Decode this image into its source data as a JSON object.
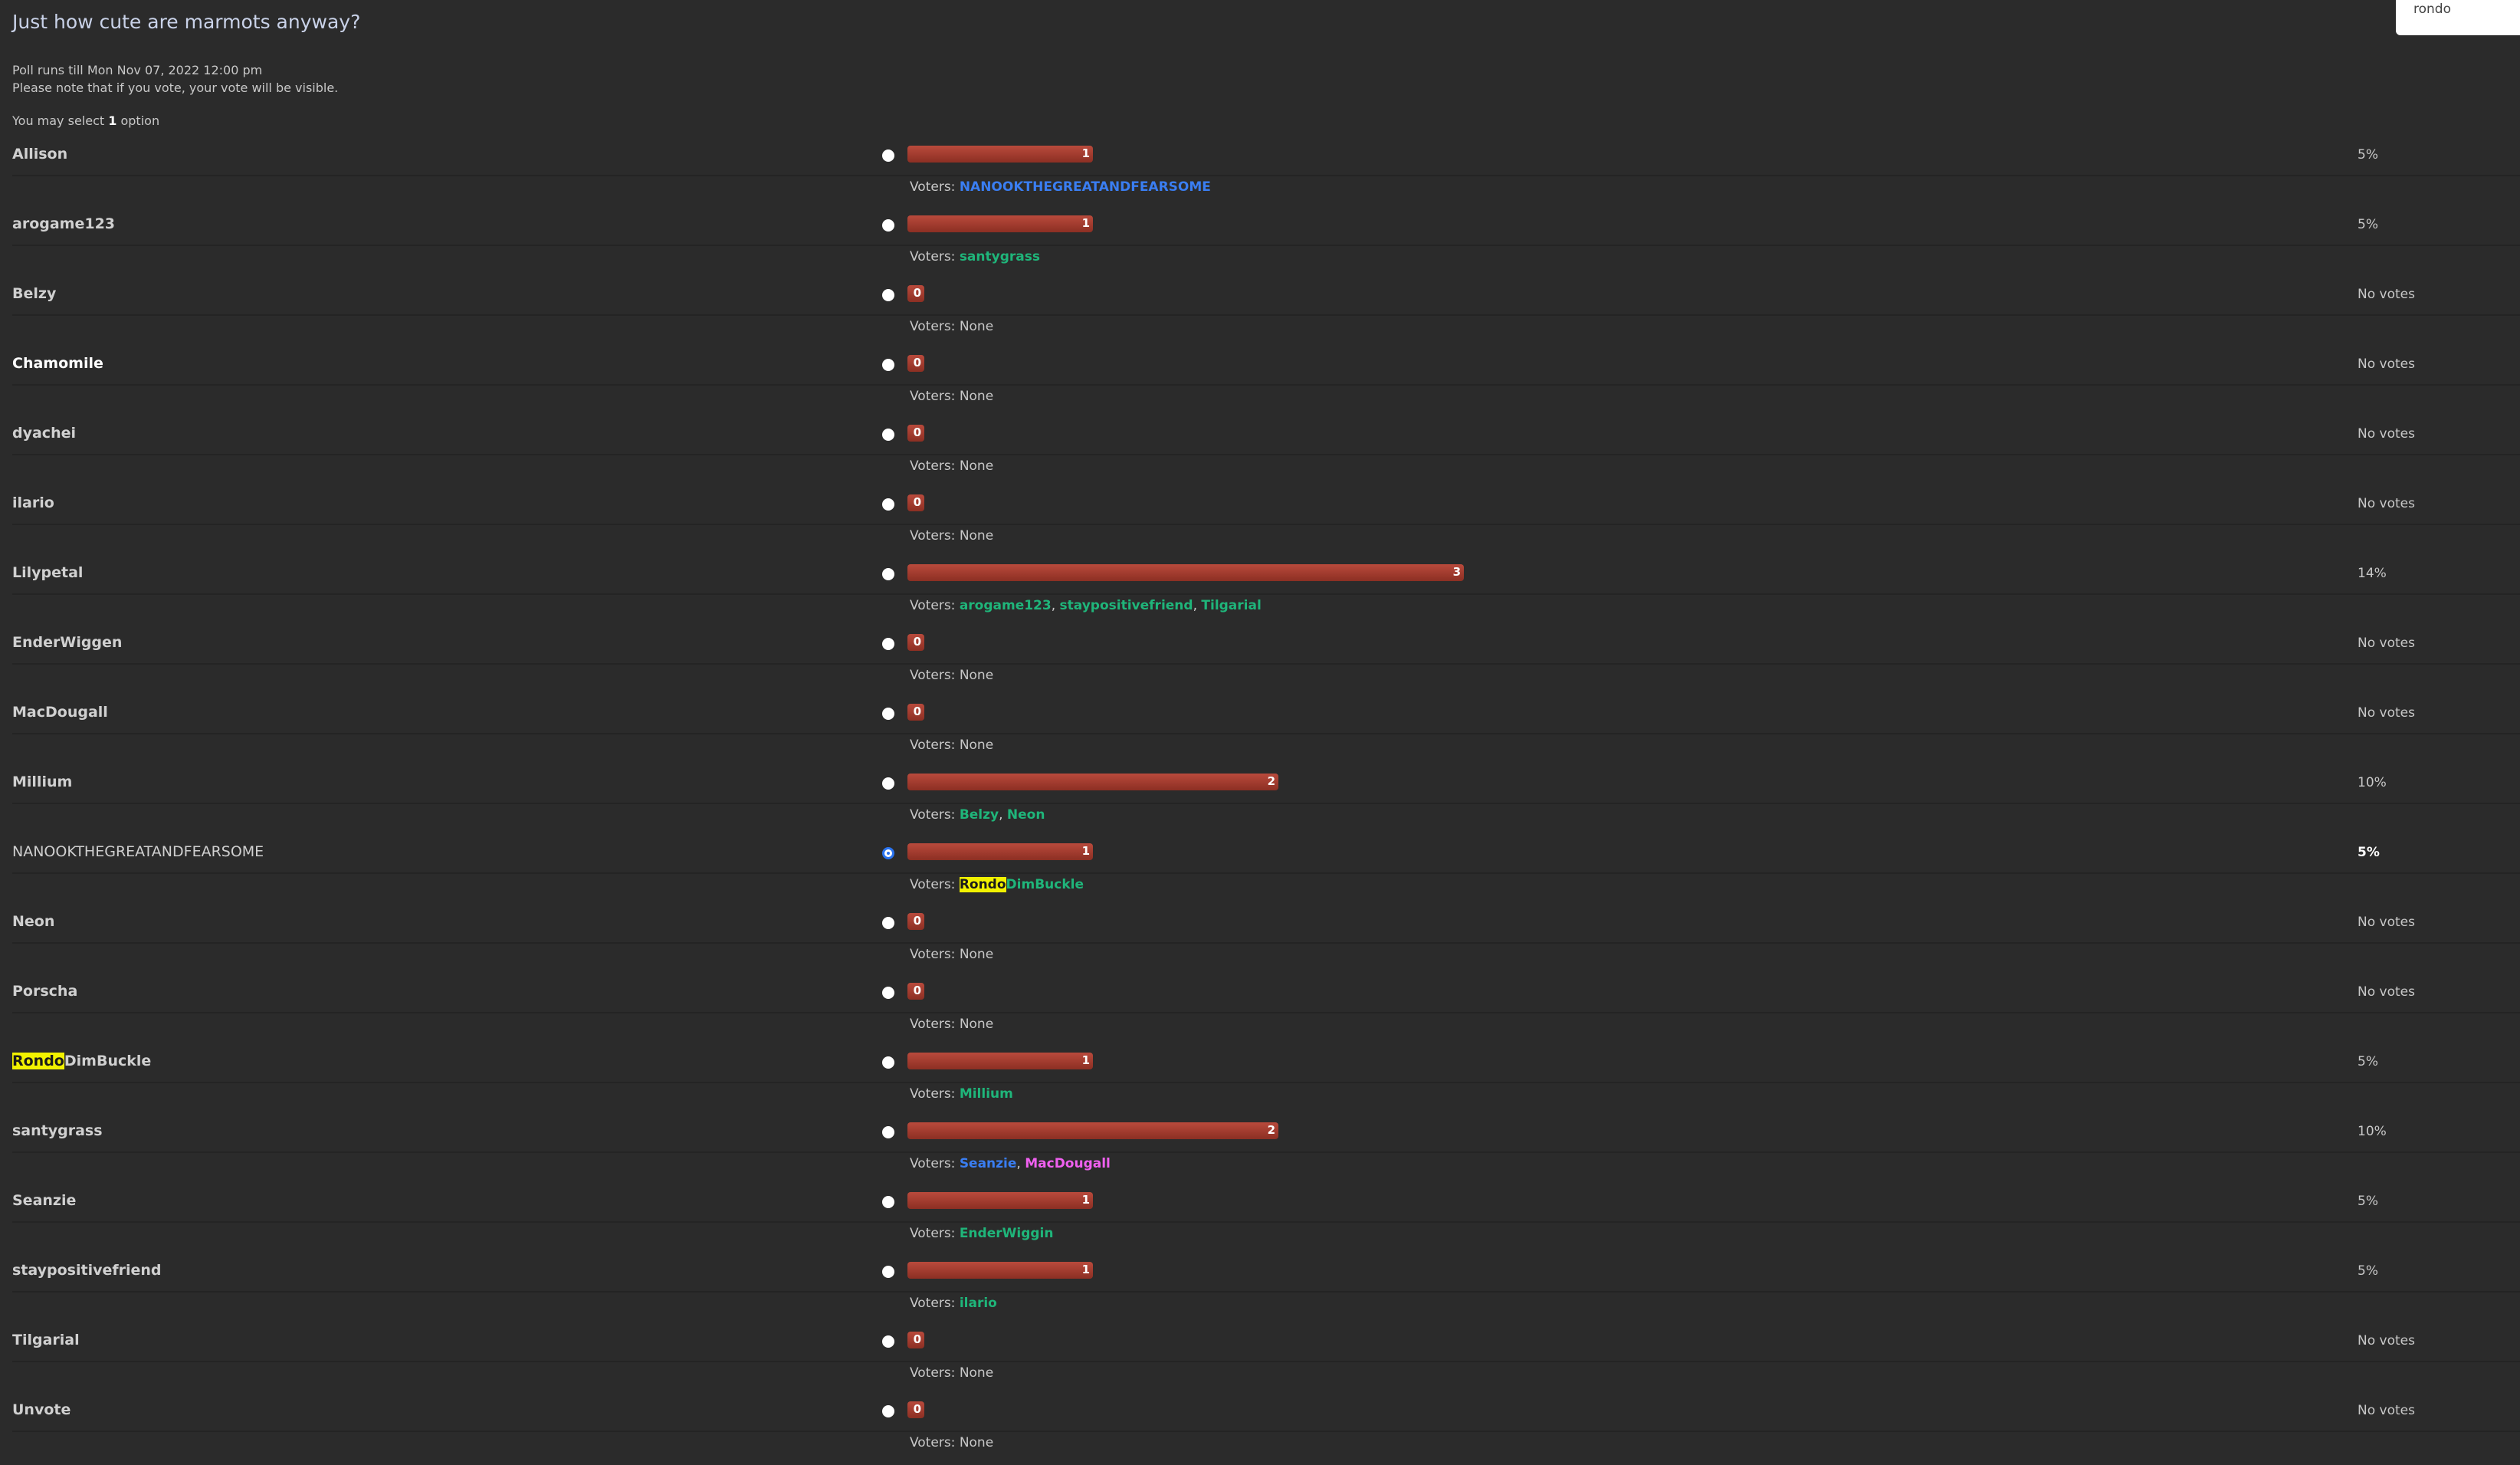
{
  "poll": {
    "title": "Just how cute are marmots anyway?",
    "runs_till": "Poll runs till Mon Nov 07, 2022 12:00 pm",
    "note": "Please note that if you vote, your vote will be visible.",
    "select_prefix": "You may select",
    "select_count": "1",
    "select_suffix": "option",
    "voters_label": "Voters:",
    "max_votes": 3
  },
  "search": {
    "value": "rondo"
  },
  "colors": {
    "bar": "#a33f31",
    "green_user": "#1fb57a",
    "blue_user": "#3a7ef2",
    "pink_user": "#f060f0",
    "highlight": "#f2f200"
  },
  "options": [
    {
      "name": "Allison",
      "votes": 1,
      "count_label": "1",
      "percent": "5%",
      "voters": [
        {
          "name": "NANOOKTHEGREATANDFEARSOME",
          "color": "#3a7ef2"
        }
      ]
    },
    {
      "name": "arogame123",
      "votes": 1,
      "count_label": "1",
      "percent": "5%",
      "voters": [
        {
          "name": "santygrass",
          "color": "#1fb57a"
        }
      ]
    },
    {
      "name": "Belzy",
      "votes": 0,
      "count_label": "0",
      "percent": "No votes",
      "voters_none": "None",
      "voters": []
    },
    {
      "name": "Chamomile",
      "bright": true,
      "votes": 0,
      "count_label": "0",
      "percent": "No votes",
      "voters_none": "None",
      "voters": []
    },
    {
      "name": "dyachei",
      "votes": 0,
      "count_label": "0",
      "percent": "No votes",
      "voters_none": "None",
      "voters": []
    },
    {
      "name": "ilario",
      "votes": 0,
      "count_label": "0",
      "percent": "No votes",
      "voters_none": "None",
      "voters": []
    },
    {
      "name": "Lilypetal",
      "votes": 3,
      "count_label": "3",
      "percent": "14%",
      "voters": [
        {
          "name": "arogame123",
          "color": "#1fb57a"
        },
        {
          "name": "staypositivefriend",
          "color": "#1fb57a"
        },
        {
          "name": "Tilgarial",
          "color": "#1fb57a"
        }
      ]
    },
    {
      "name": "EnderWiggen",
      "votes": 0,
      "count_label": "0",
      "percent": "No votes",
      "voters_none": "None",
      "voters": []
    },
    {
      "name": "MacDougall",
      "votes": 0,
      "count_label": "0",
      "percent": "No votes",
      "voters_none": "None",
      "voters": []
    },
    {
      "name": "Millium",
      "votes": 2,
      "count_label": "2",
      "percent": "10%",
      "voters": [
        {
          "name": "Belzy",
          "color": "#1fb57a"
        },
        {
          "name": "Neon",
          "color": "#1fb57a"
        }
      ]
    },
    {
      "name": "NANOOKTHEGREATANDFEARSOME",
      "plain": true,
      "selected": true,
      "percent_bold": true,
      "votes": 1,
      "count_label": "1",
      "percent": "5%",
      "voters": [
        {
          "name": "RondoDimBuckle",
          "highlight": "Rondo",
          "rest": "DimBuckle",
          "color": "#1fb57a"
        }
      ]
    },
    {
      "name": "Neon",
      "votes": 0,
      "count_label": "0",
      "percent": "No votes",
      "voters_none": "None",
      "voters": []
    },
    {
      "name": "Porscha",
      "votes": 0,
      "count_label": "0",
      "percent": "No votes",
      "voters_none": "None",
      "voters": []
    },
    {
      "name": "RondoDimBuckle",
      "name_highlight": "Rondo",
      "name_rest": "DimBuckle",
      "votes": 1,
      "count_label": "1",
      "percent": "5%",
      "voters": [
        {
          "name": "Millium",
          "color": "#1fb57a"
        }
      ]
    },
    {
      "name": "santygrass",
      "votes": 2,
      "count_label": "2",
      "percent": "10%",
      "voters": [
        {
          "name": "Seanzie",
          "color": "#3a7ef2"
        },
        {
          "name": "MacDougall",
          "color": "#f060f0"
        }
      ]
    },
    {
      "name": "Seanzie",
      "votes": 1,
      "count_label": "1",
      "percent": "5%",
      "voters": [
        {
          "name": "EnderWiggin",
          "color": "#1fb57a"
        }
      ]
    },
    {
      "name": "staypositivefriend",
      "votes": 1,
      "count_label": "1",
      "percent": "5%",
      "voters": [
        {
          "name": "ilario",
          "color": "#1fb57a"
        }
      ]
    },
    {
      "name": "Tilgarial",
      "votes": 0,
      "count_label": "0",
      "percent": "No votes",
      "voters_none": "None",
      "voters": []
    },
    {
      "name": "Unvote",
      "votes": 0,
      "count_label": "0",
      "percent": "No votes",
      "voters_none": "None",
      "voters": []
    }
  ]
}
